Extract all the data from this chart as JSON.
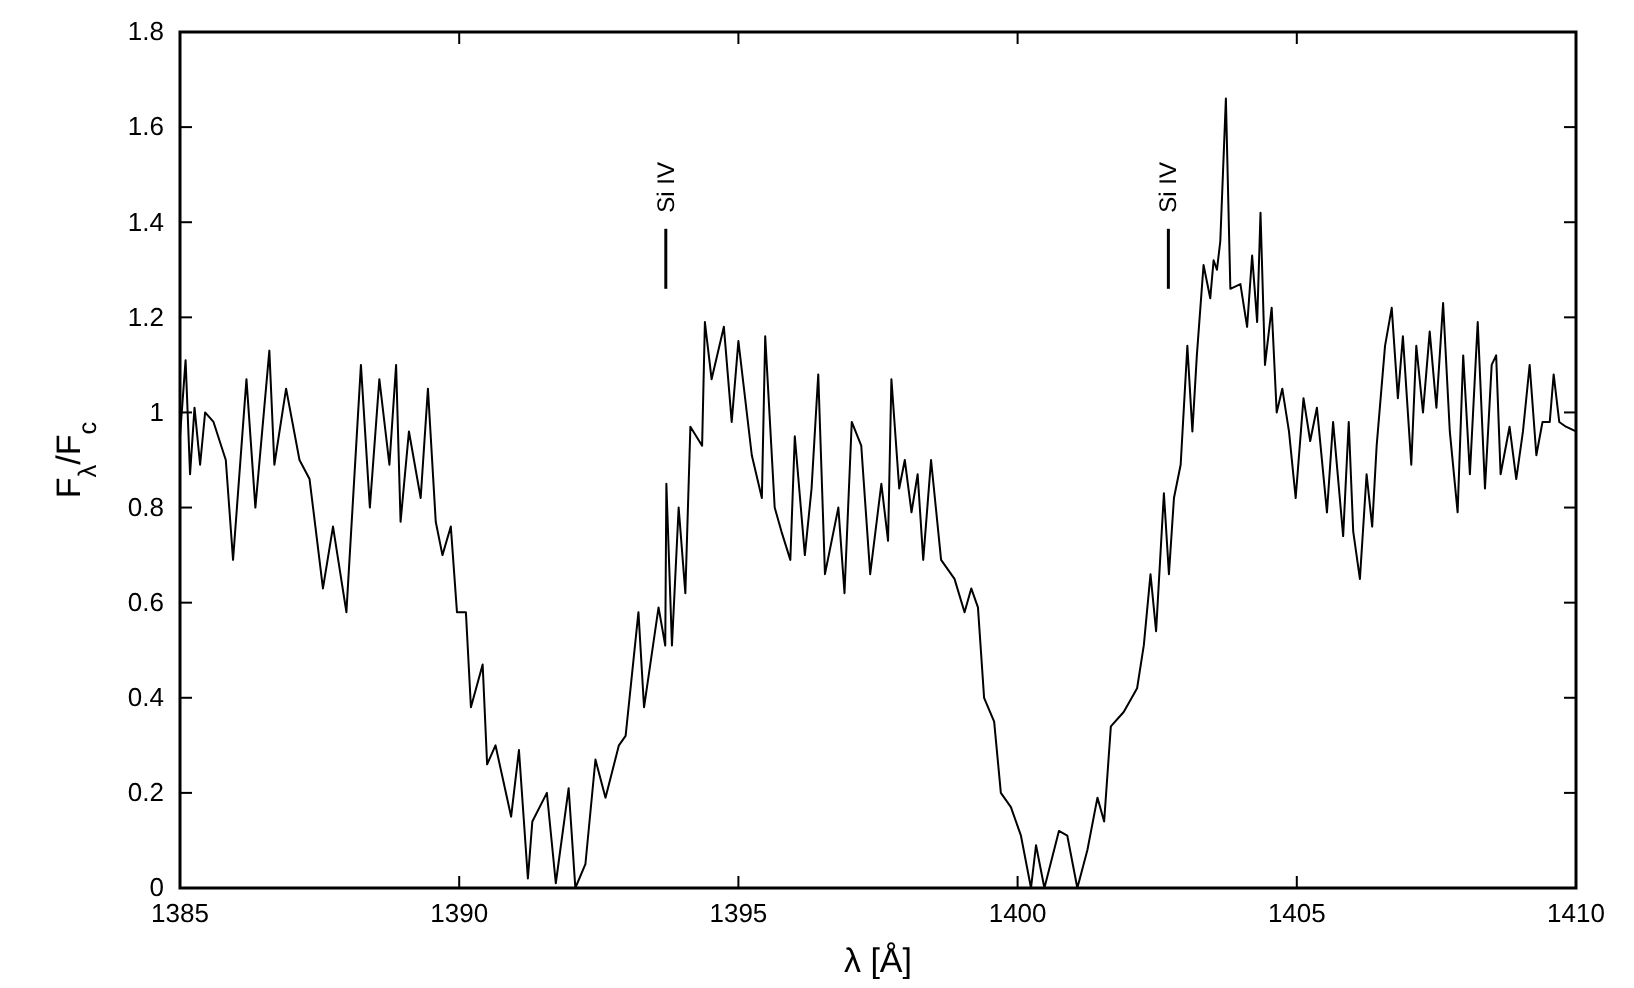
{
  "chart_data": {
    "type": "line",
    "xlabel": "λ [Å]",
    "ylabel": "F$_{λ}$/F$_{c}$",
    "xlim": [
      1385,
      1410
    ],
    "xticks": [
      1385,
      1390,
      1395,
      1400,
      1405,
      1410
    ],
    "ylim": [
      0,
      1.8
    ],
    "yticks": [
      0,
      0.2,
      0.4,
      0.6,
      0.8,
      1,
      1.2,
      1.4,
      1.6,
      1.8
    ],
    "grid": false,
    "marker": "none",
    "line_style": "solid",
    "ref_lines": [
      {
        "axis": "x",
        "value": 1393.7,
        "label": "Si IV"
      },
      {
        "axis": "x",
        "value": 1402.7,
        "label": "Si IV"
      }
    ],
    "series": [
      {
        "color": "#000000",
        "x": [
          1385,
          1385.1,
          1385.18,
          1385.26,
          1385.36,
          1385.45,
          1385.6,
          1385.82,
          1385.95,
          1386.19,
          1386.35,
          1386.6,
          1386.69,
          1386.9,
          1387.14,
          1387.32,
          1387.56,
          1387.74,
          1387.98,
          1388.24,
          1388.4,
          1388.57,
          1388.75,
          1388.87,
          1388.95,
          1389.1,
          1389.31,
          1389.44,
          1389.58,
          1389.7,
          1389.85,
          1389.96,
          1390.12,
          1390.21,
          1390.42,
          1390.5,
          1390.65,
          1390.93,
          1391.07,
          1391.23,
          1391.31,
          1391.57,
          1391.73,
          1391.96,
          1392.08,
          1392.26,
          1392.44,
          1392.62,
          1392.86,
          1392.98,
          1393.21,
          1393.31,
          1393.57,
          1393.69,
          1393.71,
          1393.81,
          1393.93,
          1394.05,
          1394.14,
          1394.35,
          1394.4,
          1394.52,
          1394.74,
          1394.88,
          1395,
          1395.24,
          1395.42,
          1395.48,
          1395.65,
          1395.77,
          1395.93,
          1396.01,
          1396.19,
          1396.31,
          1396.43,
          1396.55,
          1396.79,
          1396.9,
          1397.03,
          1397.2,
          1397.36,
          1397.56,
          1397.68,
          1397.74,
          1397.88,
          1397.98,
          1398.1,
          1398.21,
          1398.31,
          1398.45,
          1398.63,
          1398.87,
          1399.05,
          1399.17,
          1399.29,
          1399.4,
          1399.58,
          1399.7,
          1399.88,
          1400.06,
          1400.24,
          1400.33,
          1400.48,
          1400.74,
          1400.89,
          1401.07,
          1401.25,
          1401.43,
          1401.55,
          1401.67,
          1401.9,
          1402.14,
          1402.26,
          1402.38,
          1402.48,
          1402.62,
          1402.71,
          1402.8,
          1402.92,
          1403.04,
          1403.13,
          1403.21,
          1403.33,
          1403.45,
          1403.51,
          1403.57,
          1403.63,
          1403.73,
          1403.81,
          1403.99,
          1404.11,
          1404.2,
          1404.29,
          1404.35,
          1404.43,
          1404.55,
          1404.64,
          1404.74,
          1404.86,
          1404.98,
          1405.12,
          1405.24,
          1405.36,
          1405.54,
          1405.65,
          1405.83,
          1405.93,
          1406.01,
          1406.13,
          1406.25,
          1406.35,
          1406.43,
          1406.58,
          1406.7,
          1406.81,
          1406.9,
          1407.05,
          1407.14,
          1407.26,
          1407.38,
          1407.5,
          1407.62,
          1407.74,
          1407.88,
          1407.98,
          1408.1,
          1408.24,
          1408.37,
          1408.49,
          1408.57,
          1408.65,
          1408.81,
          1408.93,
          1409.05,
          1409.17,
          1409.29,
          1409.4,
          1409.53,
          1409.6,
          1409.7,
          1409.82,
          1410
        ],
        "values": [
          0.95,
          1.11,
          0.87,
          1.01,
          0.89,
          1,
          0.98,
          0.9,
          0.69,
          1.07,
          0.8,
          1.13,
          0.89,
          1.05,
          0.9,
          0.86,
          0.63,
          0.76,
          0.58,
          1.1,
          0.8,
          1.07,
          0.89,
          1.1,
          0.77,
          0.96,
          0.82,
          1.05,
          0.77,
          0.7,
          0.76,
          0.58,
          0.58,
          0.38,
          0.47,
          0.26,
          0.3,
          0.15,
          0.29,
          0.02,
          0.14,
          0.2,
          0.01,
          0.21,
          0,
          0.05,
          0.27,
          0.19,
          0.3,
          0.32,
          0.58,
          0.38,
          0.59,
          0.51,
          0.85,
          0.51,
          0.8,
          0.62,
          0.97,
          0.93,
          1.19,
          1.07,
          1.18,
          0.98,
          1.15,
          0.91,
          0.82,
          1.16,
          0.8,
          0.75,
          0.69,
          0.95,
          0.7,
          0.84,
          1.08,
          0.66,
          0.8,
          0.62,
          0.98,
          0.93,
          0.66,
          0.85,
          0.73,
          1.07,
          0.84,
          0.9,
          0.79,
          0.87,
          0.69,
          0.9,
          0.69,
          0.65,
          0.58,
          0.63,
          0.59,
          0.4,
          0.35,
          0.2,
          0.17,
          0.11,
          0,
          0.09,
          0,
          0.12,
          0.11,
          0,
          0.08,
          0.19,
          0.14,
          0.34,
          0.37,
          0.42,
          0.51,
          0.66,
          0.54,
          0.83,
          0.66,
          0.82,
          0.89,
          1.14,
          0.96,
          1.12,
          1.31,
          1.24,
          1.32,
          1.3,
          1.36,
          1.66,
          1.26,
          1.27,
          1.18,
          1.33,
          1.19,
          1.42,
          1.1,
          1.22,
          1,
          1.05,
          0.96,
          0.82,
          1.03,
          0.94,
          1.01,
          0.79,
          0.98,
          0.74,
          0.98,
          0.75,
          0.65,
          0.87,
          0.76,
          0.93,
          1.14,
          1.22,
          1.03,
          1.16,
          0.89,
          1.14,
          1,
          1.17,
          1.01,
          1.23,
          0.96,
          0.79,
          1.12,
          0.87,
          1.19,
          0.84,
          1.1,
          1.12,
          0.87,
          0.97,
          0.86,
          0.96,
          1.1,
          0.91,
          0.98,
          0.98,
          1.08,
          0.98,
          0.97,
          0.96
        ]
      }
    ]
  }
}
